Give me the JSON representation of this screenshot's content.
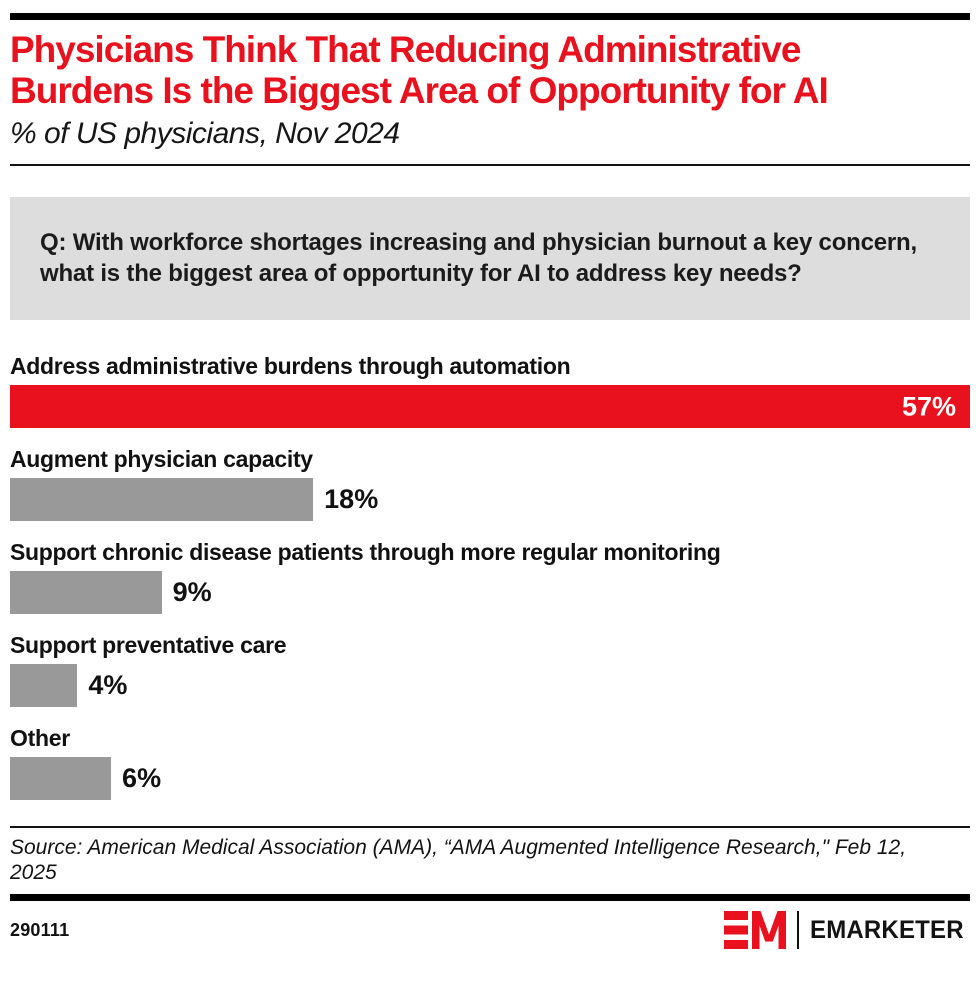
{
  "header": {
    "title_lines": [
      "Physicians Think That Reducing Administrative",
      "Burdens Is the Biggest Area of Opportunity for AI"
    ],
    "subtitle": "% of US physicians, Nov 2024"
  },
  "question": "Q: With workforce shortages increasing and physician burnout a key concern, what is the biggest area of opportunity for AI to address key needs?",
  "chart_data": {
    "type": "bar",
    "orientation": "horizontal",
    "title": "Physicians Think That Reducing Administrative Burdens Is the Biggest Area of Opportunity for AI",
    "subtitle": "% of US physicians, Nov 2024",
    "unit": "%",
    "xlim": [
      0,
      57
    ],
    "grid": false,
    "legend": "none",
    "categories": [
      "Address administrative burdens through automation",
      "Augment physician capacity",
      "Support chronic disease patients through more regular monitoring",
      "Support preventative care",
      "Other"
    ],
    "values": [
      57,
      18,
      9,
      4,
      6
    ],
    "rows": [
      {
        "label": "Address administrative burdens through automation",
        "value": 57,
        "display": "57%",
        "color": "#e8111d",
        "value_position": "inside"
      },
      {
        "label": "Augment physician capacity",
        "value": 18,
        "display": "18%",
        "color": "#999999",
        "value_position": "outside"
      },
      {
        "label": "Support chronic disease patients through more regular monitoring",
        "value": 9,
        "display": "9%",
        "color": "#999999",
        "value_position": "outside"
      },
      {
        "label": "Support preventative care",
        "value": 4,
        "display": "4%",
        "color": "#999999",
        "value_position": "outside"
      },
      {
        "label": "Other",
        "value": 6,
        "display": "6%",
        "color": "#999999",
        "value_position": "outside"
      }
    ]
  },
  "source": "Source: American Medical Association (AMA), “AMA Augmented Intelligence Research,\" Feb 12, 2025",
  "footer": {
    "chart_id": "290111",
    "brand_wordmark": "EMARKETER",
    "brand_monogram_icon": "em-monogram-icon"
  },
  "colors": {
    "accent_red": "#e8111d",
    "bar_gray": "#999999",
    "question_box_bg": "#dddddd",
    "text_black": "#111111",
    "value_inside_text": "#ffffff"
  }
}
